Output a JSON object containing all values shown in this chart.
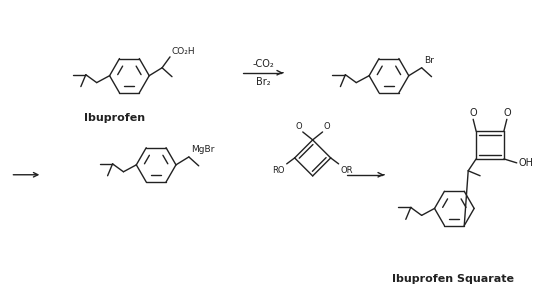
{
  "background": "#ffffff",
  "line_color": "#222222",
  "label_ibuprofen": "Ibuprofen",
  "label_squarate": "Ibuprofen Squarate",
  "reaction1_top": "-CO₂",
  "reaction1_bot": "Br₂",
  "label_MgBr": "MgBr",
  "label_CO2H": "CO₂H",
  "label_Br": "Br",
  "label_OH": "OH",
  "label_O": "O",
  "label_RO": "RO",
  "label_OR": "OR"
}
